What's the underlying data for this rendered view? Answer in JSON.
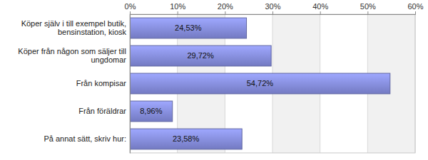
{
  "chart_data": {
    "type": "bar",
    "orientation": "horizontal",
    "categories": [
      "Köper själv i till exempel butik, bensinstation, kiosk",
      "Köper från någon som säljer till ungdomar",
      "Från kompisar",
      "Från föräldrar",
      "På annat sätt, skriv hur:"
    ],
    "values": [
      24.53,
      29.72,
      54.72,
      8.96,
      23.58
    ],
    "value_labels": [
      "24,53%",
      "29,72%",
      "54,72%",
      "8,96%",
      "23,58%"
    ],
    "data_labels": true,
    "color": "#8088d8",
    "xlim": [
      0,
      60
    ],
    "xticks": [
      {
        "value": 0,
        "label": "0%"
      },
      {
        "value": 10,
        "label": "10%"
      },
      {
        "value": 20,
        "label": "20%"
      },
      {
        "value": 30,
        "label": "30%"
      },
      {
        "value": 40,
        "label": "40%"
      },
      {
        "value": 50,
        "label": "50%"
      },
      {
        "value": 60,
        "label": "60%"
      }
    ],
    "grid": true
  }
}
